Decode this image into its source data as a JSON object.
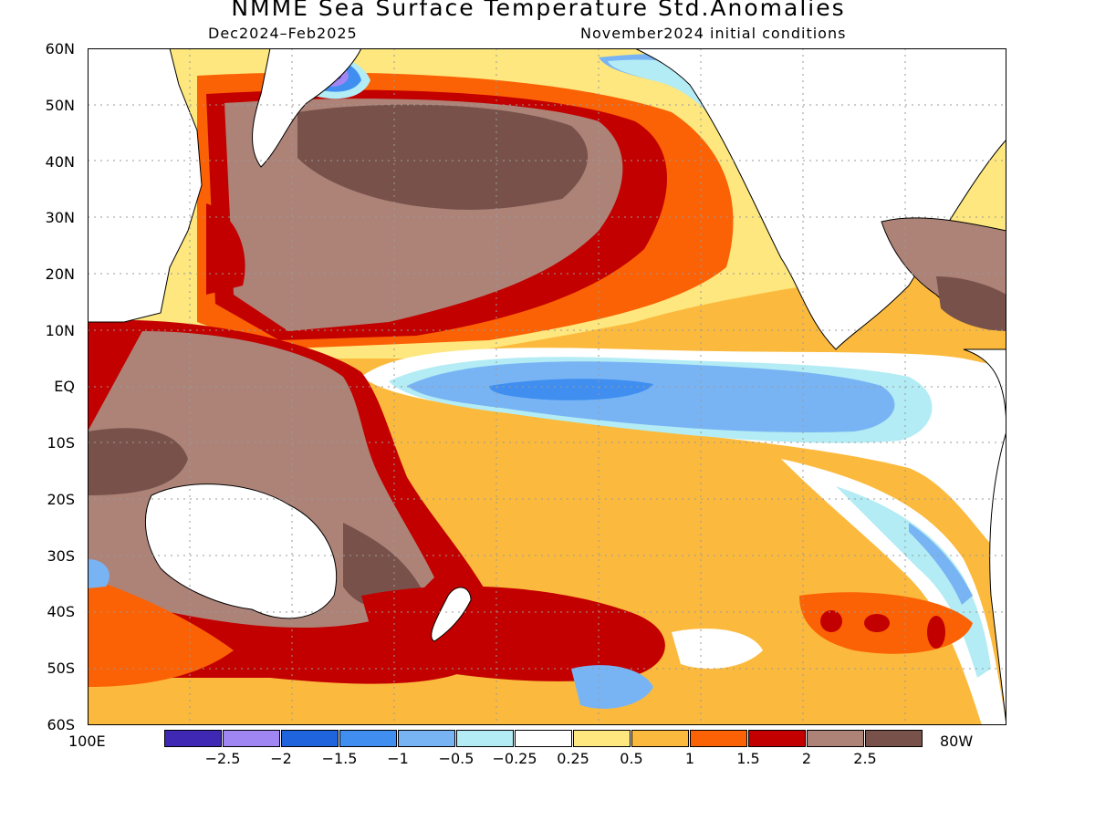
{
  "title": "NMME Sea Surface Temperature Std.Anomalies",
  "subtitle_left": "Dec2024–Feb2025",
  "subtitle_right": "November2024 initial conditions",
  "lat_labels": [
    "60N",
    "50N",
    "40N",
    "30N",
    "20N",
    "10N",
    "EQ",
    "10S",
    "20S",
    "30S",
    "40S",
    "50S",
    "60S"
  ],
  "lon_left": "100E",
  "lon_right": "80W",
  "legend": {
    "colors": [
      "#3f28b4",
      "#9f86f2",
      "#1f63dd",
      "#3f8ef0",
      "#78b4f4",
      "#b3ecf4",
      "#ffffff",
      "#fde77e",
      "#fbba3d",
      "#fb6105",
      "#c30000",
      "#ad8378",
      "#78524a"
    ],
    "labels": [
      "−2.5",
      "−2",
      "−1.5",
      "−1",
      "−0.5",
      "−0.25",
      "0.25",
      "0.5",
      "1",
      "1.5",
      "2",
      "2.5"
    ]
  }
}
